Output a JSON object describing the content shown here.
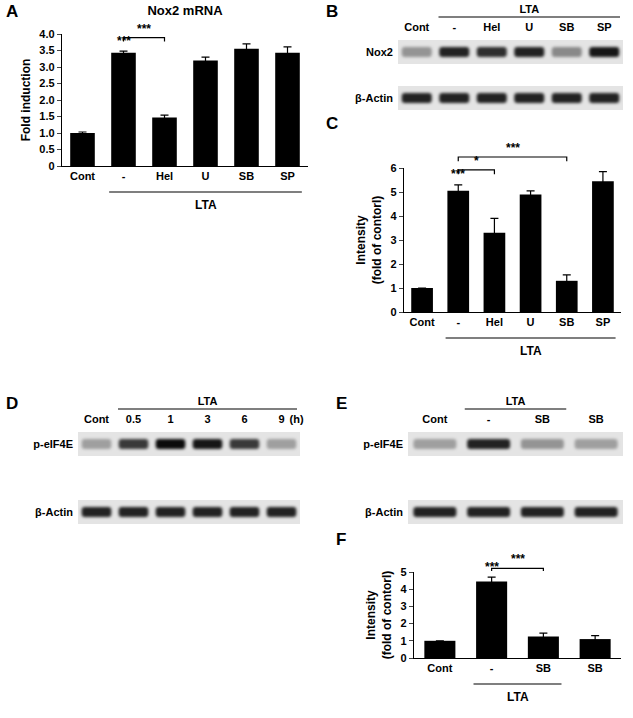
{
  "chart_data": [
    {
      "label": "A",
      "type": "bar",
      "title": "Nox2 mRNA",
      "ylabel": "Fold induction",
      "categories": [
        "Cont",
        "-",
        "Hel",
        "U",
        "SB",
        "SP"
      ],
      "values": [
        1.0,
        3.43,
        1.47,
        3.2,
        3.55,
        3.43
      ],
      "errors": [
        0.03,
        0.05,
        0.07,
        0.1,
        0.15,
        0.18
      ],
      "color": "#000000",
      "grid": false,
      "ylim": [
        0,
        4
      ],
      "yticks": [
        0,
        0.5,
        {
          "value": 1,
          "label": "1.0"
        },
        1.5,
        {
          "value": 2,
          "label": "2.0"
        },
        2.5,
        {
          "value": 3,
          "label": "3.0"
        },
        3.5,
        {
          "value": 4,
          "label": "4.0"
        }
      ],
      "group_label": {
        "text": "LTA",
        "from": 1,
        "to": 5
      },
      "annotations": [
        {
          "text": "***",
          "from": 1,
          "to": 1
        },
        {
          "text": "***",
          "from": 1,
          "to": 2
        }
      ]
    },
    {
      "label": "C",
      "type": "bar",
      "ylabel": "Intensity\n(fold of contorl)",
      "categories": [
        "Cont",
        "-",
        "Hel",
        "U",
        "SB",
        "SP"
      ],
      "values": [
        1.0,
        5.05,
        3.3,
        4.9,
        1.3,
        5.45
      ],
      "errors": [
        0,
        0.25,
        0.6,
        0.15,
        0.25,
        0.4
      ],
      "color": "#000000",
      "grid": false,
      "ylim": [
        0,
        6
      ],
      "yticks": [
        0,
        1,
        2,
        3,
        4,
        5,
        6
      ],
      "group_label": {
        "text": "LTA",
        "from": 1,
        "to": 5
      },
      "annotations": [
        {
          "text": "***",
          "from": 1,
          "to": 1
        },
        {
          "text": "*",
          "from": 1,
          "to": 2
        },
        {
          "text": "***",
          "from": 1,
          "to": 4
        }
      ]
    },
    {
      "label": "F",
      "type": "bar",
      "ylabel": "Intensity\n(fold of contorl)",
      "categories": [
        "Cont",
        "-",
        "SB",
        "SB"
      ],
      "values": [
        1.0,
        4.45,
        1.25,
        1.1
      ],
      "errors": [
        0,
        0.25,
        0.2,
        0.2
      ],
      "color": "#000000",
      "grid": false,
      "ylim": [
        0,
        5
      ],
      "yticks": [
        0,
        1,
        2,
        3,
        4,
        5
      ],
      "group_label": {
        "text": "LTA",
        "from": 1,
        "to": 2
      },
      "annotations": [
        {
          "text": "***",
          "from": 1,
          "to": 1
        },
        {
          "text": "***",
          "from": 1,
          "to": 2
        }
      ]
    }
  ],
  "blots": [
    {
      "label": "B",
      "lanes": [
        "Cont",
        "-",
        "Hel",
        "U",
        "SB",
        "SP"
      ],
      "group_label": {
        "text": "LTA",
        "from": 1,
        "to": 5
      },
      "rows": [
        {
          "name": "Nox2",
          "band_intensity": [
            0.35,
            0.85,
            0.8,
            0.85,
            0.4,
            0.9
          ]
        },
        {
          "name": "β-Actin",
          "band_intensity": [
            0.85,
            0.85,
            0.85,
            0.85,
            0.85,
            0.85
          ]
        }
      ]
    },
    {
      "label": "D",
      "lanes": [
        "Cont",
        "0.5",
        "1",
        "3",
        "6",
        "9"
      ],
      "lane_unit": "(h)",
      "group_label": {
        "text": "LTA",
        "from": 1,
        "to": 5
      },
      "rows": [
        {
          "name": "p-eIF4E",
          "band_intensity": [
            0.3,
            0.75,
            0.95,
            0.9,
            0.75,
            0.3
          ]
        },
        {
          "name": "β-Actin",
          "band_intensity": [
            0.85,
            0.85,
            0.85,
            0.85,
            0.85,
            0.85
          ]
        }
      ]
    },
    {
      "label": "E",
      "lanes": [
        "Cont",
        "-",
        "SB",
        "SB"
      ],
      "group_label": {
        "text": "LTA",
        "from": 1,
        "to": 2
      },
      "rows": [
        {
          "name": "p-eIF4E",
          "band_intensity": [
            0.3,
            0.85,
            0.35,
            0.3
          ]
        },
        {
          "name": "β-Actin",
          "band_intensity": [
            0.85,
            0.85,
            0.85,
            0.85
          ]
        }
      ]
    }
  ]
}
